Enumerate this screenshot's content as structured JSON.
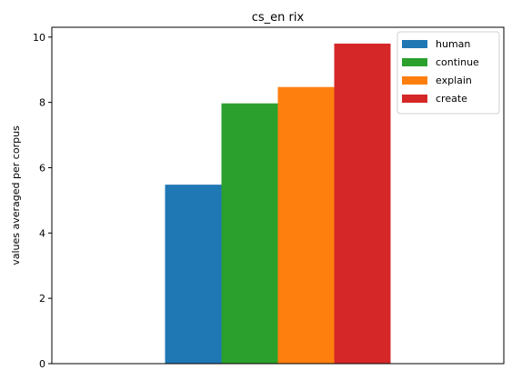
{
  "chart_data": {
    "type": "bar",
    "title": "cs_en rix",
    "xlabel": "",
    "ylabel": "values averaged per corpus",
    "ylim": [
      0,
      10.3
    ],
    "yticks": [
      0,
      2,
      4,
      6,
      8,
      10
    ],
    "grid": false,
    "legend_position": "top-right",
    "series": [
      {
        "name": "human",
        "value": 5.48,
        "color": "#1f77b4"
      },
      {
        "name": "continue",
        "value": 7.97,
        "color": "#2ca02c"
      },
      {
        "name": "explain",
        "value": 8.47,
        "color": "#ff7f0e"
      },
      {
        "name": "create",
        "value": 9.8,
        "color": "#d62728"
      }
    ]
  }
}
